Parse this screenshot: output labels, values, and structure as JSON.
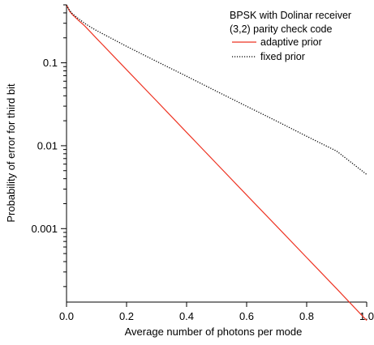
{
  "chart_data": {
    "type": "line",
    "xlabel": "Average number of photons per mode",
    "ylabel": "Probability of error for third bit",
    "xlim": [
      0,
      1
    ],
    "ylim": [
      0.00013,
      0.5
    ],
    "yscale": "log",
    "grid": false,
    "x_ticks": [
      0,
      0.2,
      0.4,
      0.6,
      0.8,
      1
    ],
    "x_tick_labels": [
      "0.0",
      "0.2",
      "0.4",
      "0.6",
      "0.8",
      "1.0"
    ],
    "y_ticks": [
      0.001,
      0.01,
      0.1
    ],
    "y_tick_labels": [
      "0.001",
      "0.01",
      "0.1"
    ],
    "legend": {
      "placement": "top-right",
      "title_lines": [
        "BPSK with Dolinar receiver",
        "(3,2) parity check code"
      ]
    },
    "series": [
      {
        "name": "adaptive prior",
        "color": "#ee3322",
        "style": "solid",
        "x": [
          0,
          0.01,
          0.02,
          0.04,
          0.06,
          0.08,
          0.1,
          0.2,
          0.3,
          0.4,
          0.5,
          0.6,
          0.7,
          0.8,
          0.9,
          1.0
        ],
        "y": [
          0.5,
          0.42,
          0.38,
          0.325,
          0.28,
          0.235,
          0.197,
          0.0826,
          0.0347,
          0.0145,
          0.00607,
          0.00254,
          0.00107,
          0.000448,
          0.000188,
          7.8e-05
        ]
      },
      {
        "name": "fixed prior",
        "color": "#000000",
        "style": "dotted",
        "x": [
          0,
          0.01,
          0.02,
          0.04,
          0.06,
          0.08,
          0.1,
          0.2,
          0.3,
          0.4,
          0.5,
          0.6,
          0.7,
          0.8,
          0.9,
          1.0
        ],
        "y": [
          0.5,
          0.43,
          0.39,
          0.34,
          0.3,
          0.27,
          0.245,
          0.158,
          0.104,
          0.0689,
          0.0453,
          0.0299,
          0.0198,
          0.013,
          0.0086,
          0.0045
        ]
      }
    ]
  }
}
